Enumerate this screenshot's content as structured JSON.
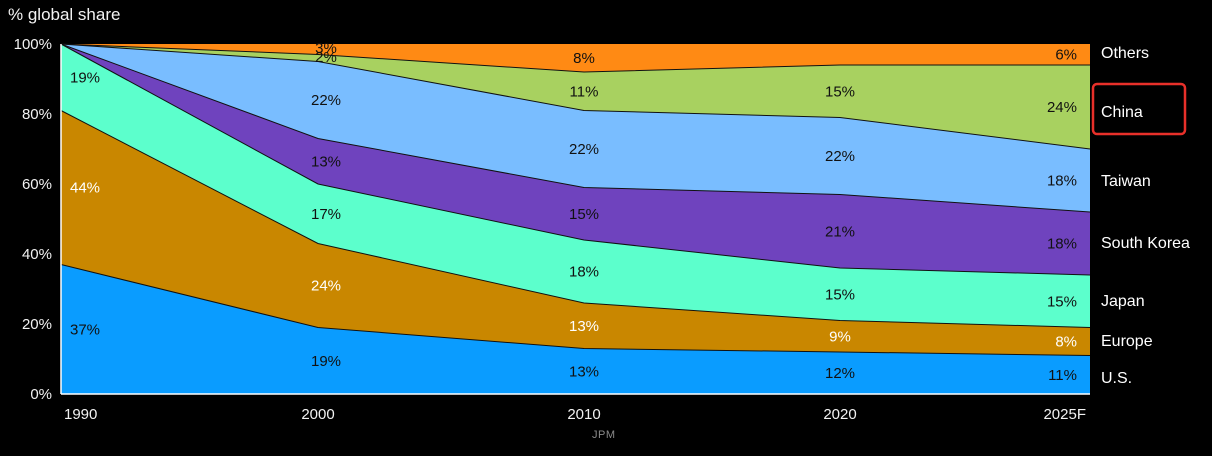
{
  "ylabel": "% global share",
  "source": "JPM",
  "highlight_series": "China",
  "colors": {
    "background": "#000000",
    "highlight_box": "#e8302a",
    "tick_text": "#f2f2f2",
    "light_label": "#ffffff",
    "dark_label": "#111111"
  },
  "chart_data": {
    "type": "area",
    "stacked": true,
    "x": [
      "1990",
      "2000",
      "2010",
      "2020",
      "2025F"
    ],
    "ylim": [
      0,
      100
    ],
    "yticks": [
      "0%",
      "20%",
      "40%",
      "60%",
      "80%",
      "100%"
    ],
    "grid": false,
    "legend": "right",
    "series": [
      {
        "name": "U.S.",
        "color": "#0a9cff",
        "values": [
          37,
          19,
          13,
          12,
          11
        ],
        "labels": [
          "37%",
          "19%",
          "13%",
          "12%",
          "11%"
        ],
        "label_color": "dark"
      },
      {
        "name": "Europe",
        "color": "#c98700",
        "values": [
          44,
          24,
          13,
          9,
          8
        ],
        "labels": [
          "44%",
          "24%",
          "13%",
          "9%",
          "8%"
        ],
        "label_color": "light"
      },
      {
        "name": "Japan",
        "color": "#5cffcc",
        "values": [
          19,
          17,
          18,
          15,
          15
        ],
        "labels": [
          "19%",
          "17%",
          "18%",
          "15%",
          "15%"
        ],
        "label_color": "dark"
      },
      {
        "name": "South Korea",
        "color": "#6f43be",
        "values": [
          0,
          13,
          15,
          21,
          18
        ],
        "labels": [
          "",
          "13%",
          "15%",
          "21%",
          "18%"
        ],
        "label_color": "dark"
      },
      {
        "name": "Taiwan",
        "color": "#79bdff",
        "values": [
          0,
          22,
          22,
          22,
          18
        ],
        "labels": [
          "",
          "22%",
          "22%",
          "22%",
          "18%"
        ],
        "label_color": "dark"
      },
      {
        "name": "China",
        "color": "#a8d160",
        "values": [
          0,
          2,
          11,
          15,
          24
        ],
        "labels": [
          "",
          "2%",
          "11%",
          "15%",
          "24%"
        ],
        "label_color": "dark"
      },
      {
        "name": "Others",
        "color": "#ff8a14",
        "values": [
          0,
          3,
          8,
          6,
          6
        ],
        "labels": [
          "",
          "3%",
          "8%",
          "",
          "6%"
        ],
        "label_color": "dark"
      }
    ]
  }
}
